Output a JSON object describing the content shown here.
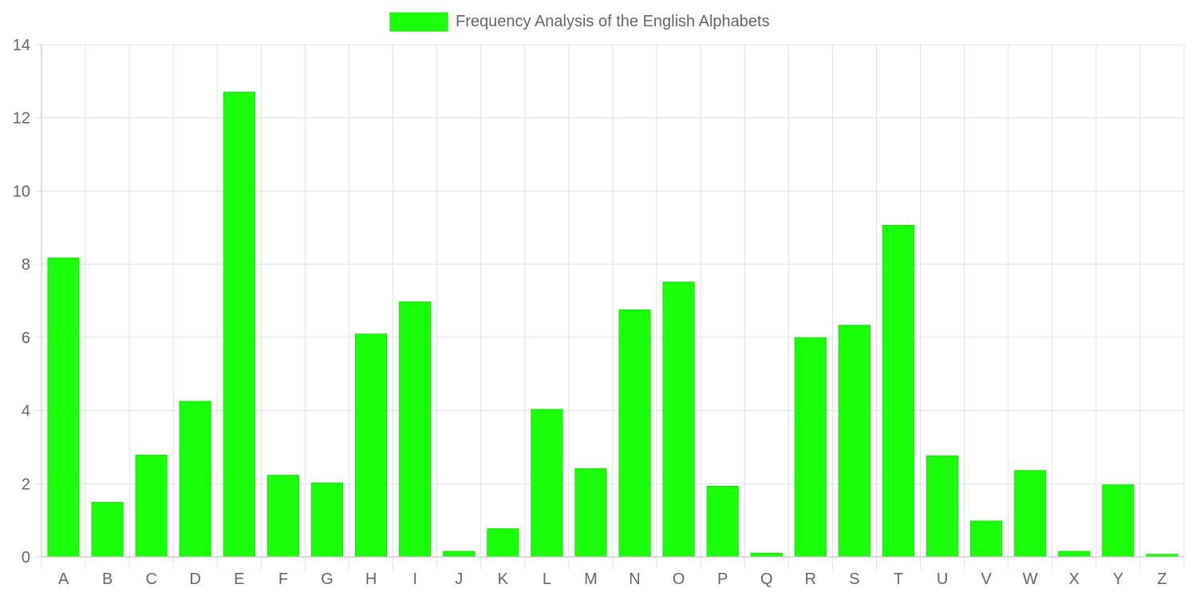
{
  "chart_data": {
    "type": "bar",
    "legend": {
      "label": "Frequency Analysis of the English Alphabets",
      "position": "top"
    },
    "categories": [
      "A",
      "B",
      "C",
      "D",
      "E",
      "F",
      "G",
      "H",
      "I",
      "J",
      "K",
      "L",
      "M",
      "N",
      "O",
      "P",
      "Q",
      "R",
      "S",
      "T",
      "U",
      "V",
      "W",
      "X",
      "Y",
      "Z"
    ],
    "series": [
      {
        "name": "Frequency Analysis of the English Alphabets",
        "values": [
          8.17,
          1.49,
          2.78,
          4.25,
          12.7,
          2.23,
          2.02,
          6.09,
          6.97,
          0.15,
          0.77,
          4.03,
          2.41,
          6.75,
          7.51,
          1.93,
          0.1,
          5.99,
          6.33,
          9.06,
          2.76,
          0.98,
          2.36,
          0.15,
          1.97,
          0.07
        ]
      }
    ],
    "ylim": [
      0,
      14
    ],
    "yticks": [
      0,
      2,
      4,
      6,
      8,
      10,
      12,
      14
    ],
    "grid": true,
    "colors": {
      "bar": "#1aff0a",
      "grid": "#e1e1e1",
      "axis": "#c8c8c8",
      "text": "#666666"
    }
  }
}
